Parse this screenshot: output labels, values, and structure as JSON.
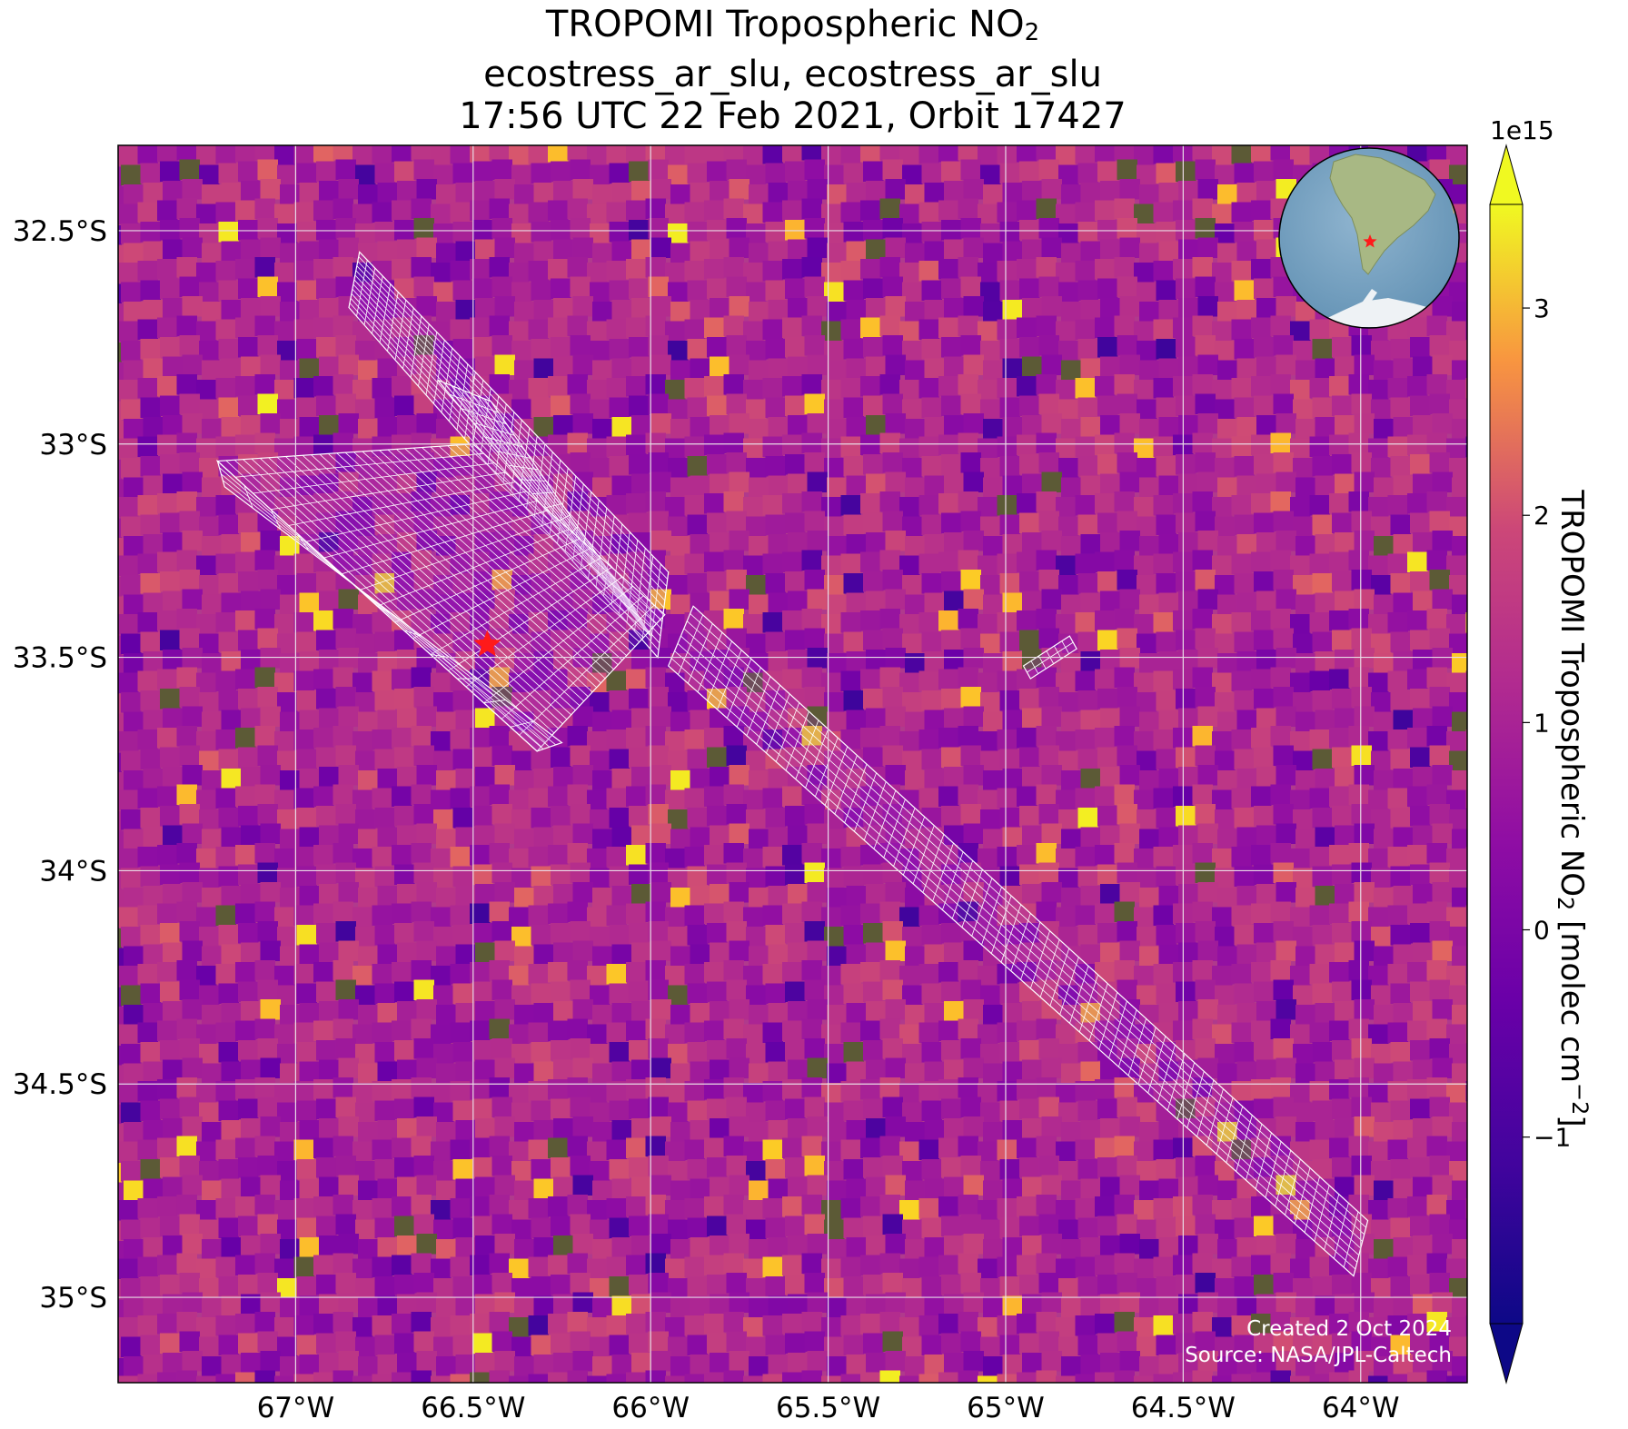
{
  "title": {
    "line1_text": "TROPOMI Tropospheric NO",
    "line1_sub": "2",
    "line2": "ecostress_ar_slu, ecostress_ar_slu",
    "line3": "17:56 UTC 22 Feb 2021, Orbit 17427"
  },
  "map": {
    "lat_ticks": [
      "32.5°S",
      "33°S",
      "33.5°S",
      "34°S",
      "34.5°S",
      "35°S"
    ],
    "lon_ticks": [
      "67°W",
      "66.5°W",
      "66°W",
      "65.5°W",
      "65°W",
      "64.5°W",
      "64°W"
    ],
    "lat_range": [
      -35.2,
      -32.3
    ],
    "lon_range": [
      -67.5,
      -63.7
    ],
    "site_marker": {
      "lon": -66.46,
      "lat": -33.47,
      "color": "#ff1a1a",
      "shape": "star"
    },
    "gridlines": true
  },
  "colorbar": {
    "label_text": "TROPOMI Tropospheric NO",
    "label_sub": "2",
    "label_units": " [molec cm",
    "label_sup": "−2",
    "label_close": "]",
    "exponent": "1e15",
    "ticks": [
      "3",
      "2",
      "1",
      "0",
      "−1"
    ],
    "range": [
      -1.9,
      3.5
    ],
    "colormap": "plasma",
    "extend": "both"
  },
  "credit": {
    "line1": "Created 2 Oct 2024",
    "line2": "Source: NASA/JPL-Caltech"
  },
  "inset": {
    "name": "globe-locator",
    "marker_color": "#ff1a1a"
  }
}
